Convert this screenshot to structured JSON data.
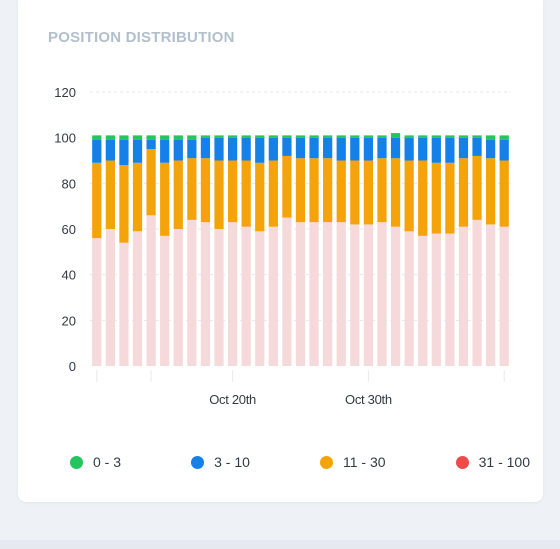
{
  "card": {
    "title": "POSITION DISTRIBUTION"
  },
  "legend": [
    {
      "label": "0 - 3",
      "color": "#22c55e"
    },
    {
      "label": "3 - 10",
      "color": "#1480e8"
    },
    {
      "label": "11 - 30",
      "color": "#f5a30a"
    },
    {
      "label": "31 - 100",
      "color": "#ef4b4b"
    }
  ],
  "chart_data": {
    "type": "bar",
    "stacked": true,
    "title": "POSITION DISTRIBUTION",
    "ylim": [
      0,
      120
    ],
    "yticks": [
      0,
      20,
      40,
      60,
      80,
      100,
      120
    ],
    "xtick_labels": [
      {
        "index": 10,
        "label": "Oct 20th"
      },
      {
        "index": 20,
        "label": "Oct 30th"
      }
    ],
    "grid": true,
    "legend_position": "bottom",
    "series": [
      {
        "name": "31 - 100",
        "color": "#f6d9da",
        "values": [
          56,
          60,
          54,
          59,
          66,
          57,
          60,
          64,
          63,
          60,
          63,
          61,
          59,
          61,
          65,
          63,
          63,
          63,
          63,
          62,
          62,
          63,
          61,
          59,
          57,
          58,
          58,
          61,
          64,
          62,
          61
        ]
      },
      {
        "name": "11 - 30",
        "color": "#f5a30a",
        "values": [
          33,
          30,
          34,
          30,
          29,
          32,
          30,
          27,
          28,
          30,
          27,
          29,
          30,
          29,
          27,
          28,
          28,
          28,
          27,
          28,
          28,
          28,
          30,
          31,
          33,
          31,
          31,
          30,
          28,
          29,
          29
        ]
      },
      {
        "name": "3 - 10",
        "color": "#1480e8",
        "values": [
          10,
          9,
          11,
          10,
          4,
          10,
          9,
          8,
          9,
          10,
          10,
          10,
          11,
          10,
          8,
          9,
          9,
          9,
          10,
          10,
          10,
          9,
          9,
          10,
          10,
          11,
          11,
          9,
          8,
          8,
          9
        ]
      },
      {
        "name": "0 - 3",
        "color": "#22c55e",
        "values": [
          2,
          2,
          2,
          2,
          2,
          2,
          2,
          2,
          1,
          1,
          1,
          1,
          1,
          1,
          1,
          1,
          1,
          1,
          1,
          1,
          1,
          1,
          2,
          1,
          1,
          1,
          1,
          1,
          1,
          2,
          2
        ]
      }
    ]
  }
}
